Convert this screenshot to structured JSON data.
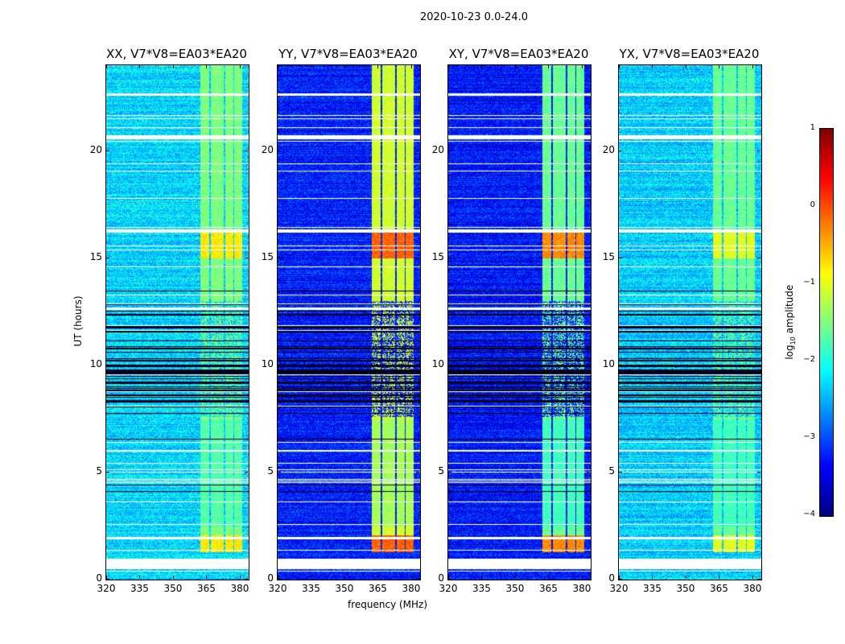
{
  "chart_data": {
    "type": "heatmap",
    "title": "2020-10-23 0.0-24.0",
    "xlabel": "frequency (MHz)",
    "ylabel": "UT (hours)",
    "xlim": [
      320,
      384
    ],
    "ylim": [
      0,
      24
    ],
    "xticks": [
      "320",
      "335",
      "350",
      "365",
      "380"
    ],
    "xtick_values": [
      320,
      335,
      350,
      365,
      380
    ],
    "yticks": [
      "0",
      "5",
      "10",
      "15",
      "20"
    ],
    "ytick_values": [
      0,
      5,
      10,
      15,
      20
    ],
    "colormap": "jet",
    "colorbar": {
      "label_main": "log",
      "label_sub": "10",
      "label_rest": " amplitude",
      "range": [
        -4,
        1
      ],
      "ticks": [
        "1",
        "0",
        "−1",
        "−2",
        "−3",
        "−4"
      ],
      "tick_values": [
        1,
        0,
        -1,
        -2,
        -3,
        -4
      ]
    },
    "rfi_channels_mhz": [
      [
        362,
        366.2
      ],
      [
        366.8,
        372.6
      ],
      [
        373.3,
        376.8
      ],
      [
        377.3,
        381
      ]
    ],
    "flagged_hours": [
      [
        0.5,
        1.0
      ],
      [
        16.2,
        16.35
      ],
      [
        20.55,
        20.75
      ],
      [
        22.6,
        22.7
      ],
      [
        12.6,
        12.7
      ],
      [
        1.9,
        2.0
      ],
      [
        6.0,
        6.05
      ]
    ],
    "dark_segment_hours": [
      7.6,
      13.0
    ],
    "panels": [
      {
        "title": "XX, V7*V8=EA03*EA20",
        "baseline": -2.3,
        "rfi_level": -1.5,
        "rfi_peak": -0.8
      },
      {
        "title": "YY, V7*V8=EA03*EA20",
        "baseline": -3.25,
        "rfi_level": -1.1,
        "rfi_peak": -0.1
      },
      {
        "title": "XY, V7*V8=EA03*EA20",
        "baseline": -3.3,
        "rfi_level": -1.6,
        "rfi_peak": -0.3
      },
      {
        "title": "YX, V7*V8=EA03*EA20",
        "baseline": -2.35,
        "rfi_level": -1.6,
        "rfi_peak": -1.0
      }
    ]
  }
}
